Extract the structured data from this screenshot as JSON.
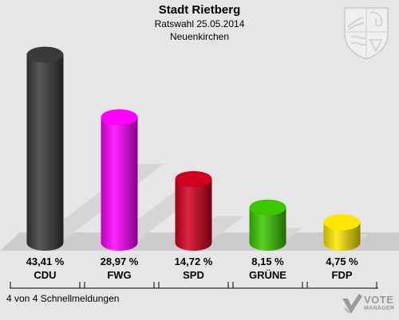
{
  "header": {
    "title": "Stadt Rietberg",
    "subtitle": "Ratswahl 25.05.2014",
    "location": "Neuenkirchen"
  },
  "footer": {
    "note": "4 von 4 Schnellmeldungen",
    "logo_line1": "VOTE",
    "logo_line2": "MANAGER"
  },
  "icons": {
    "crest": "nrw-coat-of-arms-icon",
    "logo": "vote-manager-logo-icon"
  },
  "chart_data": {
    "type": "bar",
    "title": "Stadt Rietberg",
    "categories": [
      "CDU",
      "FWG",
      "SPD",
      "GRÜNE",
      "FDP"
    ],
    "values": [
      43.41,
      28.97,
      14.72,
      8.15,
      4.75
    ],
    "value_labels": [
      "43,41 %",
      "28,97 %",
      "14,72 %",
      "8,15 %",
      "4,75 %"
    ],
    "colors": [
      "#3a3a3a",
      "#ff00ff",
      "#d2001e",
      "#3cc800",
      "#ffe600"
    ],
    "xlabel": "",
    "ylabel": "",
    "ylim": [
      0,
      45
    ],
    "grid": false,
    "legend": "none"
  }
}
